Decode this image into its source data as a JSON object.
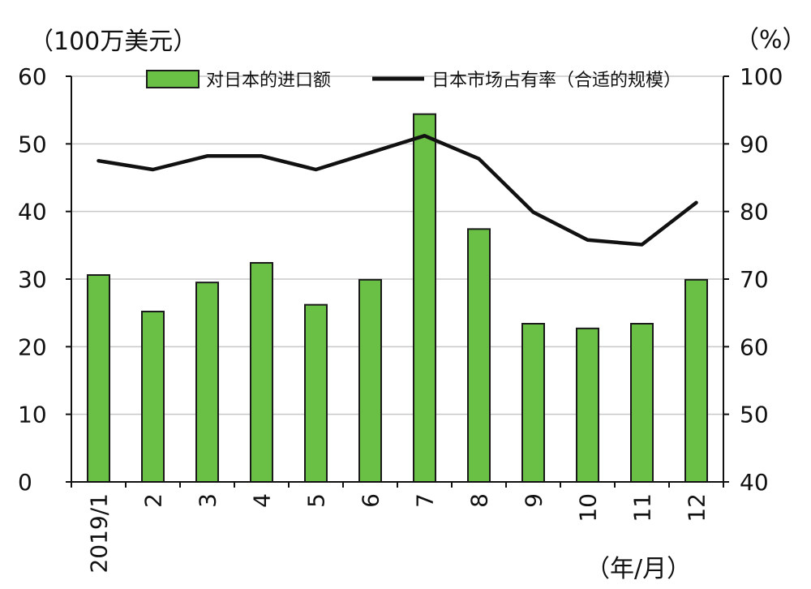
{
  "chart_data": {
    "type": "bar",
    "categories": [
      "2019/1",
      "2",
      "3",
      "4",
      "5",
      "6",
      "7",
      "8",
      "9",
      "10",
      "11",
      "12"
    ],
    "series": [
      {
        "name": "对日本的进口额",
        "type": "bar",
        "axis": "left",
        "values": [
          30.6,
          25.2,
          29.5,
          32.4,
          26.2,
          29.9,
          54.4,
          37.4,
          23.4,
          22.7,
          23.4,
          29.9
        ],
        "color": "#6abf45"
      },
      {
        "name": "日本市场占有率（合适的规模）",
        "type": "line",
        "axis": "right",
        "values": [
          87.5,
          86.2,
          88.2,
          88.2,
          86.2,
          88.7,
          91.2,
          87.8,
          79.9,
          75.8,
          75.1,
          81.3
        ],
        "color": "#111111"
      }
    ],
    "y_left": {
      "unit_label": "（100万美元）",
      "ticks": [
        "0",
        "10",
        "20",
        "30",
        "40",
        "50",
        "60"
      ],
      "ylim": [
        0,
        60
      ]
    },
    "y_right": {
      "unit_label": "（%）",
      "ticks": [
        "40",
        "50",
        "60",
        "70",
        "80",
        "90",
        "100"
      ],
      "ylim": [
        40,
        100
      ]
    },
    "x_unit_label": "（年/月）",
    "legend_position": "top",
    "grid": true,
    "grid_color": "#c8c8c8",
    "bar_edge_color": "#1a1a1a"
  }
}
